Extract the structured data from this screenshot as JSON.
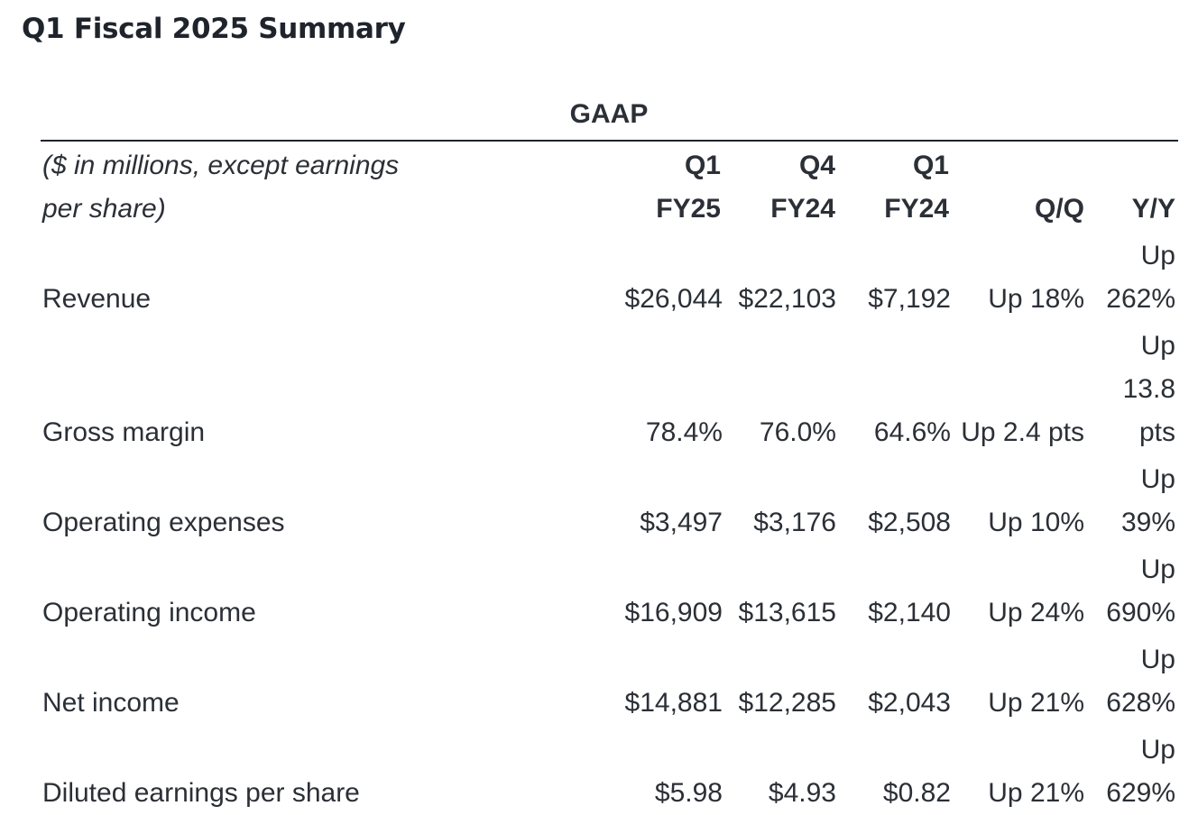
{
  "title": "Q1 Fiscal 2025 Summary",
  "section_label": "GAAP",
  "header": {
    "caption_line1": "($ in millions, except earnings",
    "caption_line2": "per share)",
    "columns": [
      {
        "line1": "Q1",
        "line2": "FY25"
      },
      {
        "line1": "Q4",
        "line2": "FY24"
      },
      {
        "line1": "Q1",
        "line2": "FY24"
      },
      {
        "line1": "",
        "line2": "Q/Q"
      },
      {
        "line1": "",
        "line2": "Y/Y"
      }
    ]
  },
  "rows": [
    {
      "label": "Revenue",
      "q1fy25": "$26,044",
      "q4fy24": "$22,103",
      "q1fy24": "$7,192",
      "qq": "Up 18%",
      "yy": [
        "Up",
        "262%"
      ]
    },
    {
      "label": "Gross margin",
      "q1fy25": "78.4%",
      "q4fy24": "76.0%",
      "q1fy24": "64.6%",
      "qq": "Up 2.4 pts",
      "yy": [
        "Up",
        "13.8",
        "pts"
      ]
    },
    {
      "label": "Operating expenses",
      "q1fy25": "$3,497",
      "q4fy24": "$3,176",
      "q1fy24": "$2,508",
      "qq": "Up 10%",
      "yy": [
        "Up",
        "39%"
      ]
    },
    {
      "label": "Operating income",
      "q1fy25": "$16,909",
      "q4fy24": "$13,615",
      "q1fy24": "$2,140",
      "qq": "Up 24%",
      "yy": [
        "Up",
        "690%"
      ]
    },
    {
      "label": "Net income",
      "q1fy25": "$14,881",
      "q4fy24": "$12,285",
      "q1fy24": "$2,043",
      "qq": "Up 21%",
      "yy": [
        "Up",
        "628%"
      ]
    },
    {
      "label": "Diluted earnings per share",
      "q1fy25": "$5.98",
      "q4fy24": "$4.93",
      "q1fy24": "$0.82",
      "qq": "Up 21%",
      "yy": [
        "Up",
        "629%"
      ]
    }
  ]
}
